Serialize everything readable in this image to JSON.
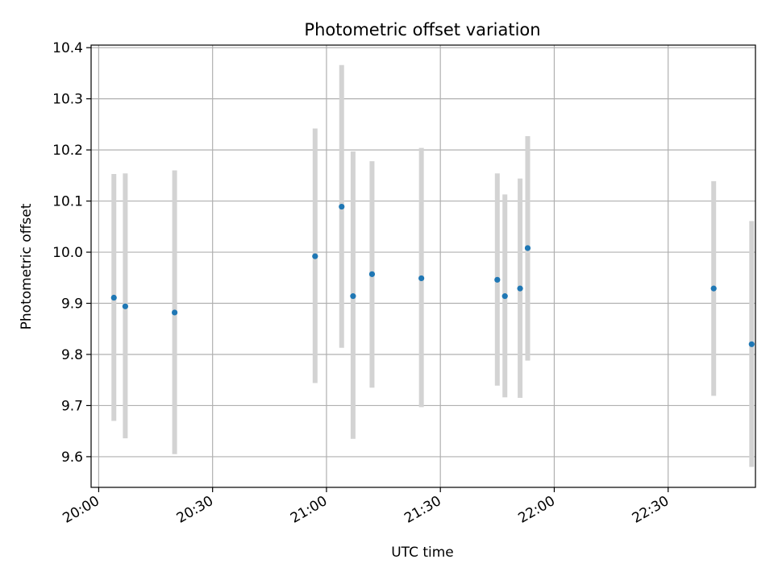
{
  "chart_data": {
    "type": "scatter",
    "title": "Photometric offset variation",
    "xlabel": "UTC time",
    "ylabel": "Photometric offset",
    "x_is_time": true,
    "xlim": [
      "19:58",
      "22:53"
    ],
    "ylim": [
      9.54,
      10.405
    ],
    "x_ticks": [
      "20:00",
      "20:30",
      "21:00",
      "21:30",
      "22:00",
      "22:30"
    ],
    "y_ticks": [
      9.6,
      9.7,
      9.8,
      9.9,
      10.0,
      10.1,
      10.2,
      10.3,
      10.4
    ],
    "y_tick_labels": [
      "9.6",
      "9.7",
      "9.8",
      "9.9",
      "10.0",
      "10.1",
      "10.2",
      "10.3",
      "10.4"
    ],
    "grid": true,
    "colors": {
      "point": "#1f77b4",
      "errorbar": "#d3d3d3",
      "grid": "#b0b0b0",
      "axes": "#000000"
    },
    "points": [
      {
        "x": "20:04",
        "y": 9.911,
        "ymin": 9.67,
        "ymax": 10.153
      },
      {
        "x": "20:07",
        "y": 9.894,
        "ymin": 9.636,
        "ymax": 10.154
      },
      {
        "x": "20:20",
        "y": 9.882,
        "ymin": 9.605,
        "ymax": 10.16
      },
      {
        "x": "20:57",
        "y": 9.992,
        "ymin": 9.744,
        "ymax": 10.242
      },
      {
        "x": "21:04",
        "y": 10.089,
        "ymin": 9.813,
        "ymax": 10.366
      },
      {
        "x": "21:07",
        "y": 9.914,
        "ymin": 9.635,
        "ymax": 10.197
      },
      {
        "x": "21:12",
        "y": 9.957,
        "ymin": 9.735,
        "ymax": 10.178
      },
      {
        "x": "21:25",
        "y": 9.949,
        "ymin": 9.697,
        "ymax": 10.204
      },
      {
        "x": "21:45",
        "y": 9.946,
        "ymin": 9.739,
        "ymax": 10.154
      },
      {
        "x": "21:47",
        "y": 9.914,
        "ymin": 9.716,
        "ymax": 10.113
      },
      {
        "x": "21:51",
        "y": 9.929,
        "ymin": 9.715,
        "ymax": 10.144
      },
      {
        "x": "21:53",
        "y": 10.008,
        "ymin": 9.788,
        "ymax": 10.227
      },
      {
        "x": "22:42",
        "y": 9.929,
        "ymin": 9.719,
        "ymax": 10.139
      },
      {
        "x": "22:52",
        "y": 9.82,
        "ymin": 9.58,
        "ymax": 10.061
      }
    ]
  }
}
